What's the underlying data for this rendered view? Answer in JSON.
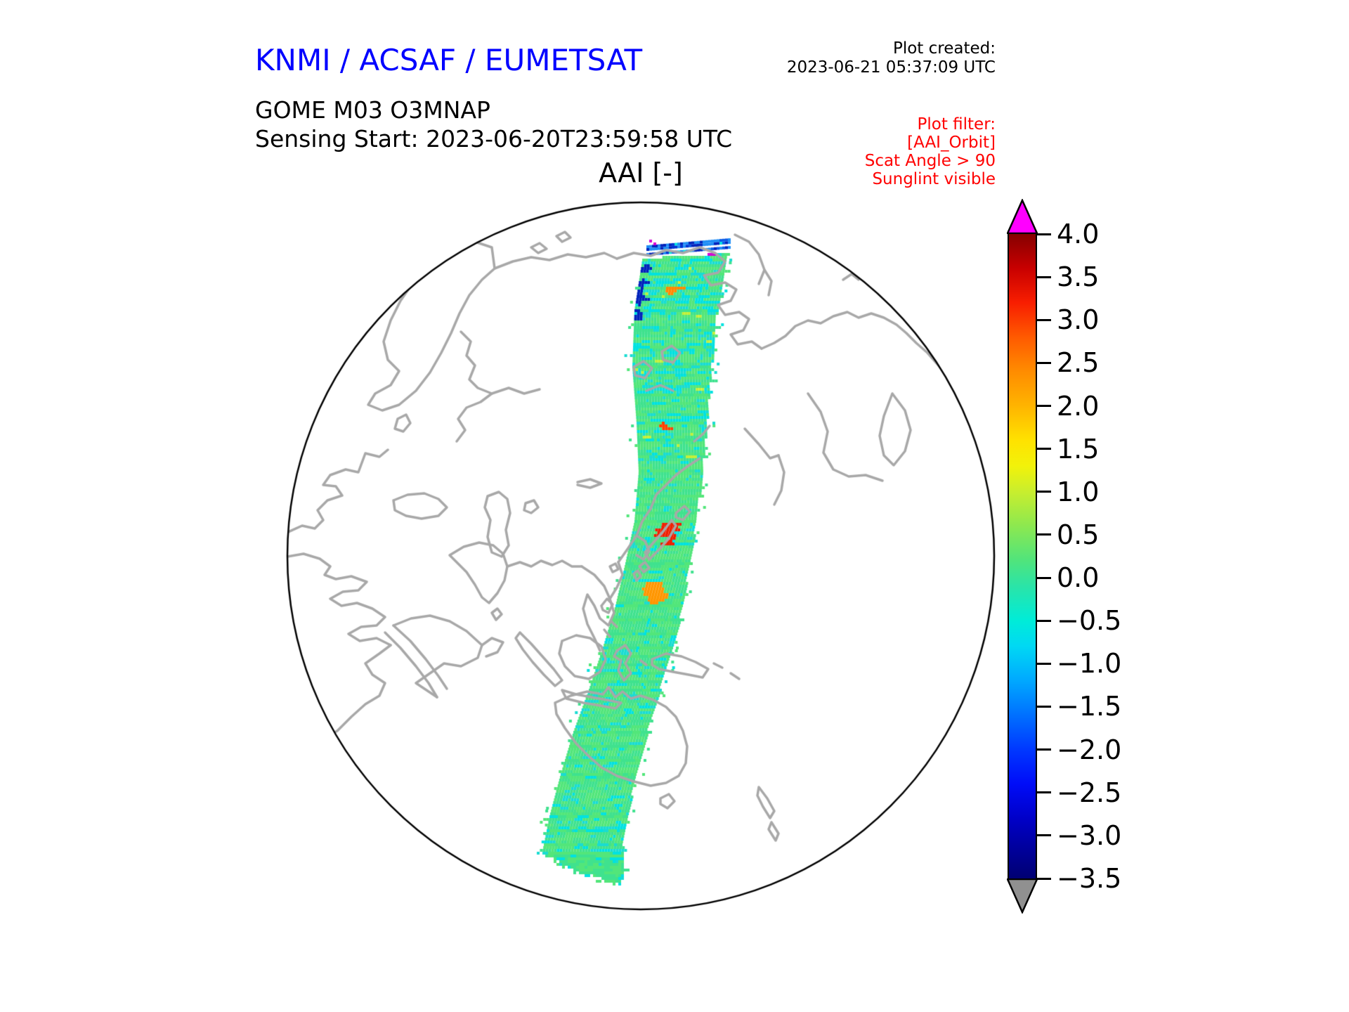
{
  "header": {
    "org_title": "KNMI / ACSAF / EUMETSAT",
    "org_title_color": "#0000ff",
    "plot_created_label": "Plot created:",
    "plot_created_value": "2023-06-21 05:37:09 UTC",
    "product_line1": "GOME M03 O3MNAP",
    "product_line2": "Sensing Start: 2023-06-20T23:59:58 UTC",
    "map_title": "AAI [-]"
  },
  "plot_filter": {
    "color": "#ff0000",
    "lines": [
      "Plot filter:",
      "[AAI_Orbit]",
      "Scat Angle > 90",
      "Sunglint visible"
    ]
  },
  "colorbar": {
    "vmax": 4.0,
    "vmin": -3.5,
    "ticks": [
      "4.0",
      "3.5",
      "3.0",
      "2.5",
      "2.0",
      "1.5",
      "1.0",
      "0.5",
      "0.0",
      "−0.5",
      "−1.0",
      "−1.5",
      "−2.0",
      "−2.5",
      "−3.0",
      "−3.5"
    ],
    "over_color": "#ff00ff",
    "under_color": "#909090",
    "gradient": [
      {
        "v": 4.0,
        "c": "#860000"
      },
      {
        "v": 3.6,
        "c": "#c80000"
      },
      {
        "v": 3.2,
        "c": "#f81e00"
      },
      {
        "v": 2.8,
        "c": "#ff5a00"
      },
      {
        "v": 2.4,
        "c": "#ff8c00"
      },
      {
        "v": 2.0,
        "c": "#ffb400"
      },
      {
        "v": 1.6,
        "c": "#ffe200"
      },
      {
        "v": 1.3,
        "c": "#f2f20a"
      },
      {
        "v": 1.0,
        "c": "#c8ee2e"
      },
      {
        "v": 0.6,
        "c": "#8ce850"
      },
      {
        "v": 0.2,
        "c": "#50e47c"
      },
      {
        "v": -0.1,
        "c": "#2ae4a8"
      },
      {
        "v": -0.5,
        "c": "#00ecd8"
      },
      {
        "v": -0.8,
        "c": "#00d8f4"
      },
      {
        "v": -1.2,
        "c": "#00a8ff"
      },
      {
        "v": -1.6,
        "c": "#0070ff"
      },
      {
        "v": -2.0,
        "c": "#0038ff"
      },
      {
        "v": -2.4,
        "c": "#000cf8"
      },
      {
        "v": -2.8,
        "c": "#0000c8"
      },
      {
        "v": -3.2,
        "c": "#000096"
      },
      {
        "v": -3.5,
        "c": "#000072"
      }
    ]
  },
  "map": {
    "projection": "orthographic",
    "outline_color": "#000000",
    "coastline_color": "#a8a8a8",
    "swath_palette": {
      "greens": [
        "#3fe28e",
        "#52e67a",
        "#74ea5c",
        "#96ee46"
      ],
      "cyans": [
        "#19dcd2",
        "#00e2e0",
        "#2fe2b6",
        "#00d2f2"
      ],
      "yellow_greens": [
        "#c2f038",
        "#e0f414"
      ],
      "yellows": [
        "#ffe000",
        "#ffc800"
      ],
      "oranges": [
        "#ff9600",
        "#ff6a00"
      ],
      "reds": [
        "#ef1e00",
        "#c80000"
      ],
      "blues": [
        "#1e8cf5",
        "#0a5ae6",
        "#0033d2"
      ],
      "dark_blues": [
        "#0022bb",
        "#001696"
      ],
      "magenta": "#d400d4"
    }
  }
}
